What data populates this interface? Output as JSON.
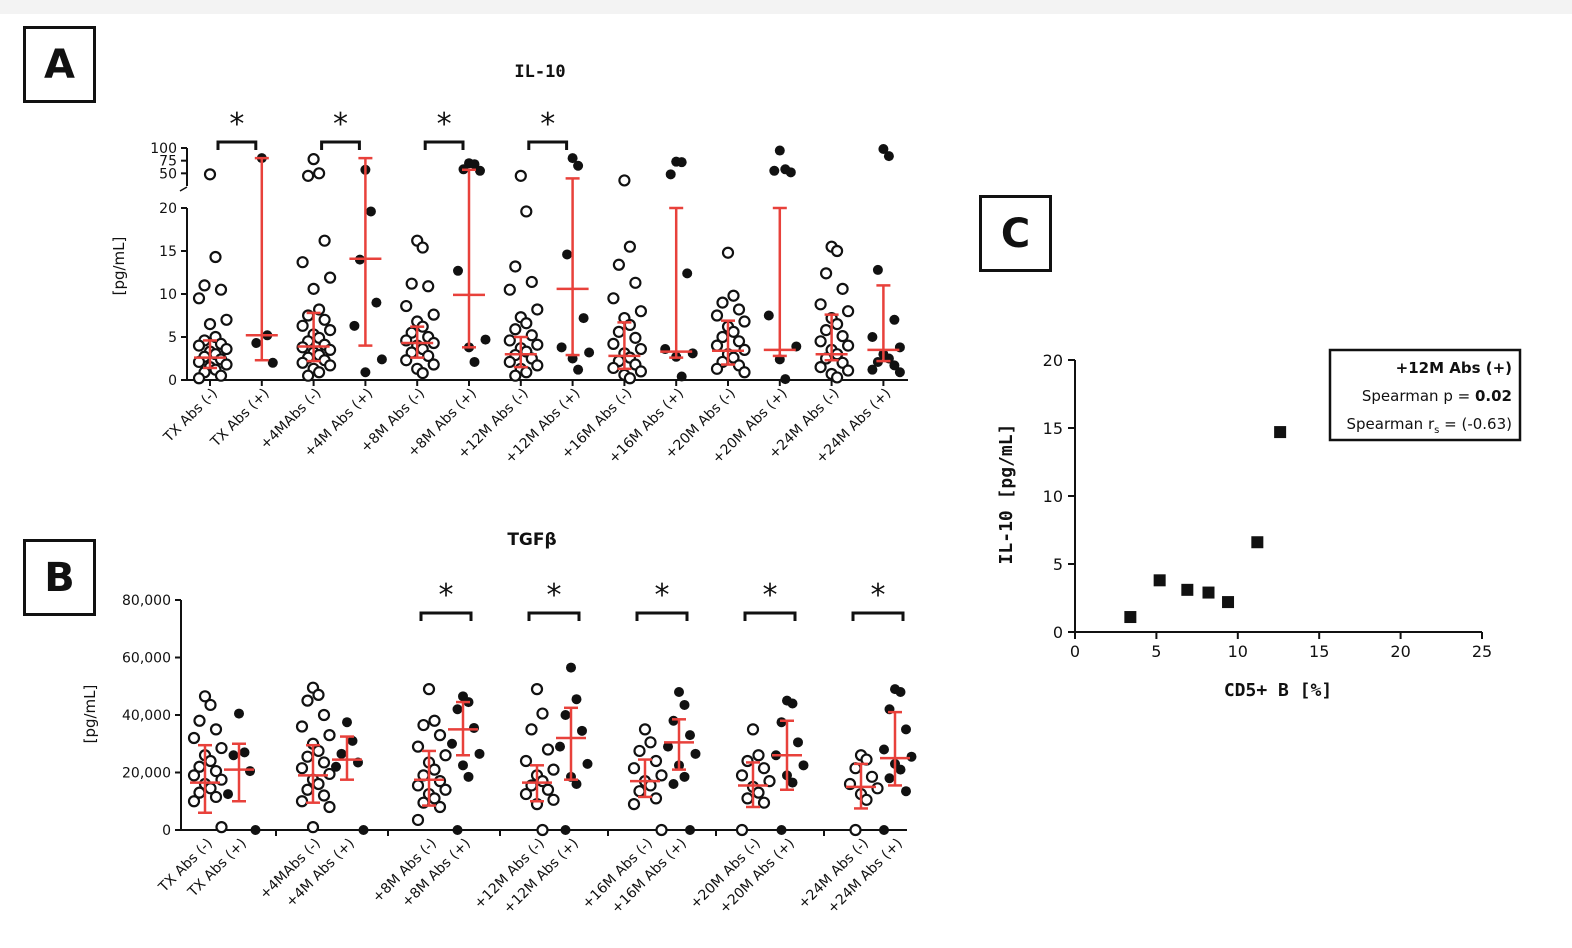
{
  "panel_labels": {
    "a": "A",
    "b": "B",
    "c": "C"
  },
  "significance_marker": "*",
  "colors": {
    "mean_sd": "#e8413b",
    "marker": "#111111"
  },
  "chart_data": [
    {
      "panel": "A",
      "type": "scatter",
      "title": "IL-10",
      "ylabel": "[pg/mL]",
      "y_axis": "broken",
      "ylim_lower": [
        0,
        20
      ],
      "ylim_upper": [
        25,
        100
      ],
      "yticks_lower": [
        "0",
        "5",
        "10",
        "15",
        "20"
      ],
      "yticks_upper": [
        "50",
        "75",
        "100"
      ],
      "categories": [
        "TX Abs (-)",
        "TX Abs (+)",
        "+4MAbs (-)",
        "+4M Abs (+)",
        "+8M Abs (-)",
        "+8M Abs (+)",
        "+12M Abs (-)",
        "+12M Abs (+)",
        "+16M Abs (-)",
        "+16M Abs (+)",
        "+20M Abs (-)",
        "+20M Abs (+)",
        "+24M Abs (-)",
        "+24M Abs (+)"
      ],
      "marker": [
        "open",
        "filled",
        "open",
        "filled",
        "open",
        "filled",
        "open",
        "filled",
        "open",
        "filled",
        "open",
        "filled",
        "open",
        "filled"
      ],
      "significance_pairs": [
        [
          0,
          1
        ],
        [
          2,
          3
        ],
        [
          4,
          5
        ],
        [
          6,
          7
        ]
      ],
      "summary": [
        {
          "mean": 2.6,
          "sd_low": 1.4,
          "sd_high": 4.6
        },
        {
          "mean": 5.2,
          "sd_low": 2.3,
          "sd_high": 80
        },
        {
          "mean": 3.9,
          "sd_low": 2.2,
          "sd_high": 7.8
        },
        {
          "mean": 14.1,
          "sd_low": 4.0,
          "sd_high": 80
        },
        {
          "mean": 4.3,
          "sd_low": 2.6,
          "sd_high": 6.2
        },
        {
          "mean": 9.9,
          "sd_low": 3.8,
          "sd_high": 57
        },
        {
          "mean": 3.0,
          "sd_low": 1.5,
          "sd_high": 5.0
        },
        {
          "mean": 10.6,
          "sd_low": 2.9,
          "sd_high": 40
        },
        {
          "mean": 2.8,
          "sd_low": 1.3,
          "sd_high": 6.7
        },
        {
          "mean": 3.3,
          "sd_low": 2.6,
          "sd_high": 20
        },
        {
          "mean": 3.4,
          "sd_low": 1.8,
          "sd_high": 6.9
        },
        {
          "mean": 3.5,
          "sd_low": 2.8,
          "sd_high": 20
        },
        {
          "mean": 3.0,
          "sd_low": 2.3,
          "sd_high": 7.6
        },
        {
          "mean": 3.5,
          "sd_low": 2.2,
          "sd_high": 11.0
        }
      ],
      "points": [
        [
          48,
          14.3,
          11.0,
          10.5,
          9.5,
          7.0,
          6.5,
          5.0,
          4.6,
          4.2,
          4.0,
          3.6,
          3.3,
          3.0,
          2.7,
          2.4,
          2.1,
          1.8,
          1.5,
          1.2,
          0.9,
          0.5,
          0.2
        ],
        [
          80,
          5.2,
          4.3,
          2.0
        ],
        [
          78,
          50,
          45,
          16.2,
          13.7,
          11.9,
          10.6,
          8.2,
          7.5,
          7.0,
          6.3,
          5.8,
          5.3,
          4.9,
          4.5,
          4.1,
          3.8,
          3.5,
          3.2,
          2.9,
          2.6,
          2.3,
          2.0,
          1.7,
          1.3,
          0.9,
          0.5
        ],
        [
          57,
          19.6,
          14.0,
          9.0,
          6.3,
          2.4,
          0.9
        ],
        [
          16.2,
          15.4,
          11.2,
          10.9,
          8.6,
          7.6,
          6.8,
          6.2,
          5.5,
          5.0,
          4.6,
          4.3,
          4.0,
          3.6,
          3.2,
          2.8,
          2.3,
          1.8,
          1.3,
          0.8
        ],
        [
          70,
          68,
          58,
          55,
          12.7,
          4.7,
          3.8,
          2.1
        ],
        [
          45,
          19.6,
          13.2,
          11.4,
          10.5,
          8.2,
          7.3,
          6.6,
          5.9,
          5.2,
          4.6,
          4.1,
          3.7,
          3.3,
          2.9,
          2.5,
          2.1,
          1.7,
          1.3,
          0.9,
          0.5
        ],
        [
          80,
          65,
          14.6,
          7.2,
          3.8,
          3.2,
          2.5,
          1.2
        ],
        [
          36,
          15.5,
          13.4,
          11.3,
          9.5,
          8.0,
          7.2,
          6.4,
          5.6,
          4.9,
          4.2,
          3.6,
          3.1,
          2.6,
          2.2,
          1.8,
          1.4,
          1.0,
          0.6,
          0.2
        ],
        [
          73,
          72,
          48,
          12.4,
          3.6,
          3.1,
          2.7,
          0.4
        ],
        [
          14.8,
          9.8,
          9.0,
          8.2,
          7.5,
          6.8,
          6.2,
          5.6,
          5.0,
          4.5,
          4.0,
          3.5,
          3.0,
          2.6,
          2.1,
          1.7,
          1.3,
          0.9
        ],
        [
          95,
          58,
          55,
          52,
          7.5,
          3.9,
          2.4,
          0.1
        ],
        [
          15.5,
          15.0,
          12.4,
          10.6,
          8.8,
          8.0,
          7.2,
          6.5,
          5.8,
          5.1,
          4.5,
          4.0,
          3.5,
          3.0,
          2.5,
          2.0,
          1.5,
          1.1,
          0.7,
          0.3
        ],
        [
          98,
          84,
          12.8,
          7.0,
          5.0,
          3.8,
          3.0,
          2.5,
          2.1,
          1.7,
          1.2,
          0.9
        ]
      ]
    },
    {
      "panel": "B",
      "type": "scatter",
      "title": "TGFβ",
      "ylabel": "[pg/mL]",
      "ylim": [
        0,
        80000
      ],
      "yticks": [
        "0",
        "20,000",
        "40,000",
        "60,000",
        "80,000"
      ],
      "categories": [
        "TX Abs (-)",
        "TX Abs (+)",
        "+4MAbs (-)",
        "+4M Abs (+)",
        "+8M Abs (-)",
        "+8M Abs (+)",
        "+12M Abs (-)",
        "+12M Abs (+)",
        "+16M Abs (-)",
        "+16M Abs (+)",
        "+20M Abs (-)",
        "+20M Abs (+)",
        "+24M Abs (-)",
        "+24M Abs (+)"
      ],
      "marker": [
        "open",
        "filled",
        "open",
        "filled",
        "open",
        "filled",
        "open",
        "filled",
        "open",
        "filled",
        "open",
        "filled",
        "open",
        "filled"
      ],
      "significance_pairs": [
        [
          4,
          5
        ],
        [
          6,
          7
        ],
        [
          8,
          9
        ],
        [
          10,
          11
        ],
        [
          12,
          13
        ]
      ],
      "summary": [
        {
          "mean": 16500,
          "sd_low": 6000,
          "sd_high": 29500
        },
        {
          "mean": 21000,
          "sd_low": 10000,
          "sd_high": 30000
        },
        {
          "mean": 19000,
          "sd_low": 9500,
          "sd_high": 29500
        },
        {
          "mean": 24500,
          "sd_low": 17500,
          "sd_high": 32500
        },
        {
          "mean": 17500,
          "sd_low": 8500,
          "sd_high": 27500
        },
        {
          "mean": 35000,
          "sd_low": 26000,
          "sd_high": 44500
        },
        {
          "mean": 16500,
          "sd_low": 10000,
          "sd_high": 22500
        },
        {
          "mean": 32000,
          "sd_low": 17500,
          "sd_high": 42500
        },
        {
          "mean": 17000,
          "sd_low": 11500,
          "sd_high": 24500
        },
        {
          "mean": 30500,
          "sd_low": 21000,
          "sd_high": 38500
        },
        {
          "mean": 15500,
          "sd_low": 8000,
          "sd_high": 23500
        },
        {
          "mean": 26000,
          "sd_low": 14000,
          "sd_high": 38000
        },
        {
          "mean": 15000,
          "sd_low": 7500,
          "sd_high": 23000
        },
        {
          "mean": 25000,
          "sd_low": 15500,
          "sd_high": 41000
        }
      ],
      "points": [
        [
          46500,
          43500,
          38000,
          35000,
          32000,
          28500,
          26000,
          24000,
          22000,
          20500,
          19000,
          17500,
          16000,
          14500,
          13000,
          11500,
          10000,
          1000
        ],
        [
          40500,
          27000,
          26000,
          20500,
          12500,
          0
        ],
        [
          49500,
          47000,
          45000,
          40000,
          36000,
          33000,
          30000,
          27500,
          25500,
          23500,
          21500,
          19500,
          17500,
          16000,
          14000,
          12000,
          10000,
          8000,
          1000
        ],
        [
          37500,
          31000,
          26500,
          23500,
          22000,
          0
        ],
        [
          49000,
          38000,
          36500,
          33000,
          29000,
          26000,
          23500,
          21000,
          19000,
          17000,
          15500,
          14000,
          12500,
          11000,
          9500,
          8000,
          3500
        ],
        [
          46500,
          44500,
          42000,
          35500,
          30000,
          26500,
          22500,
          18500,
          0
        ],
        [
          49000,
          40500,
          35000,
          28000,
          24000,
          21000,
          19000,
          17000,
          15500,
          14000,
          12500,
          10500,
          9000,
          0
        ],
        [
          56500,
          45500,
          40000,
          34500,
          29000,
          23000,
          18500,
          16000,
          0
        ],
        [
          35000,
          30500,
          27500,
          24000,
          21500,
          19000,
          17000,
          15500,
          13500,
          11000,
          9000,
          0
        ],
        [
          48000,
          43500,
          38000,
          33000,
          29000,
          26500,
          22500,
          18500,
          16000,
          0
        ],
        [
          35000,
          26000,
          24000,
          21500,
          19000,
          17000,
          15000,
          13000,
          11000,
          9500,
          0
        ],
        [
          45000,
          44000,
          37500,
          30500,
          26000,
          22500,
          19000,
          16500,
          0
        ],
        [
          26000,
          24500,
          21500,
          18500,
          16000,
          14500,
          12500,
          10500,
          0
        ],
        [
          49000,
          48000,
          42000,
          35000,
          28000,
          25500,
          23000,
          21000,
          18000,
          13500,
          0
        ]
      ]
    },
    {
      "panel": "C",
      "type": "scatter",
      "xlabel": "CD5+ B [%]",
      "ylabel": "IL-10 [pg/mL]",
      "xlim": [
        0,
        25
      ],
      "ylim": [
        0,
        20
      ],
      "xticks": [
        "0",
        "5",
        "10",
        "15",
        "20",
        "25"
      ],
      "yticks": [
        "0",
        "5",
        "10",
        "15",
        "20"
      ],
      "points": [
        {
          "x": 3.4,
          "y": 1.1
        },
        {
          "x": 5.2,
          "y": 3.8
        },
        {
          "x": 6.9,
          "y": 3.1
        },
        {
          "x": 8.2,
          "y": 2.9
        },
        {
          "x": 9.4,
          "y": 2.2
        },
        {
          "x": 11.2,
          "y": 6.6
        },
        {
          "x": 12.6,
          "y": 14.7
        }
      ],
      "legend": {
        "title": "+12M Abs (+)",
        "line1_label": "Spearman p =",
        "line1_value": "0.02",
        "line2_label": "Spearman r",
        "line2_sub": "s",
        "line2_value": "= (-0.63)"
      }
    }
  ]
}
